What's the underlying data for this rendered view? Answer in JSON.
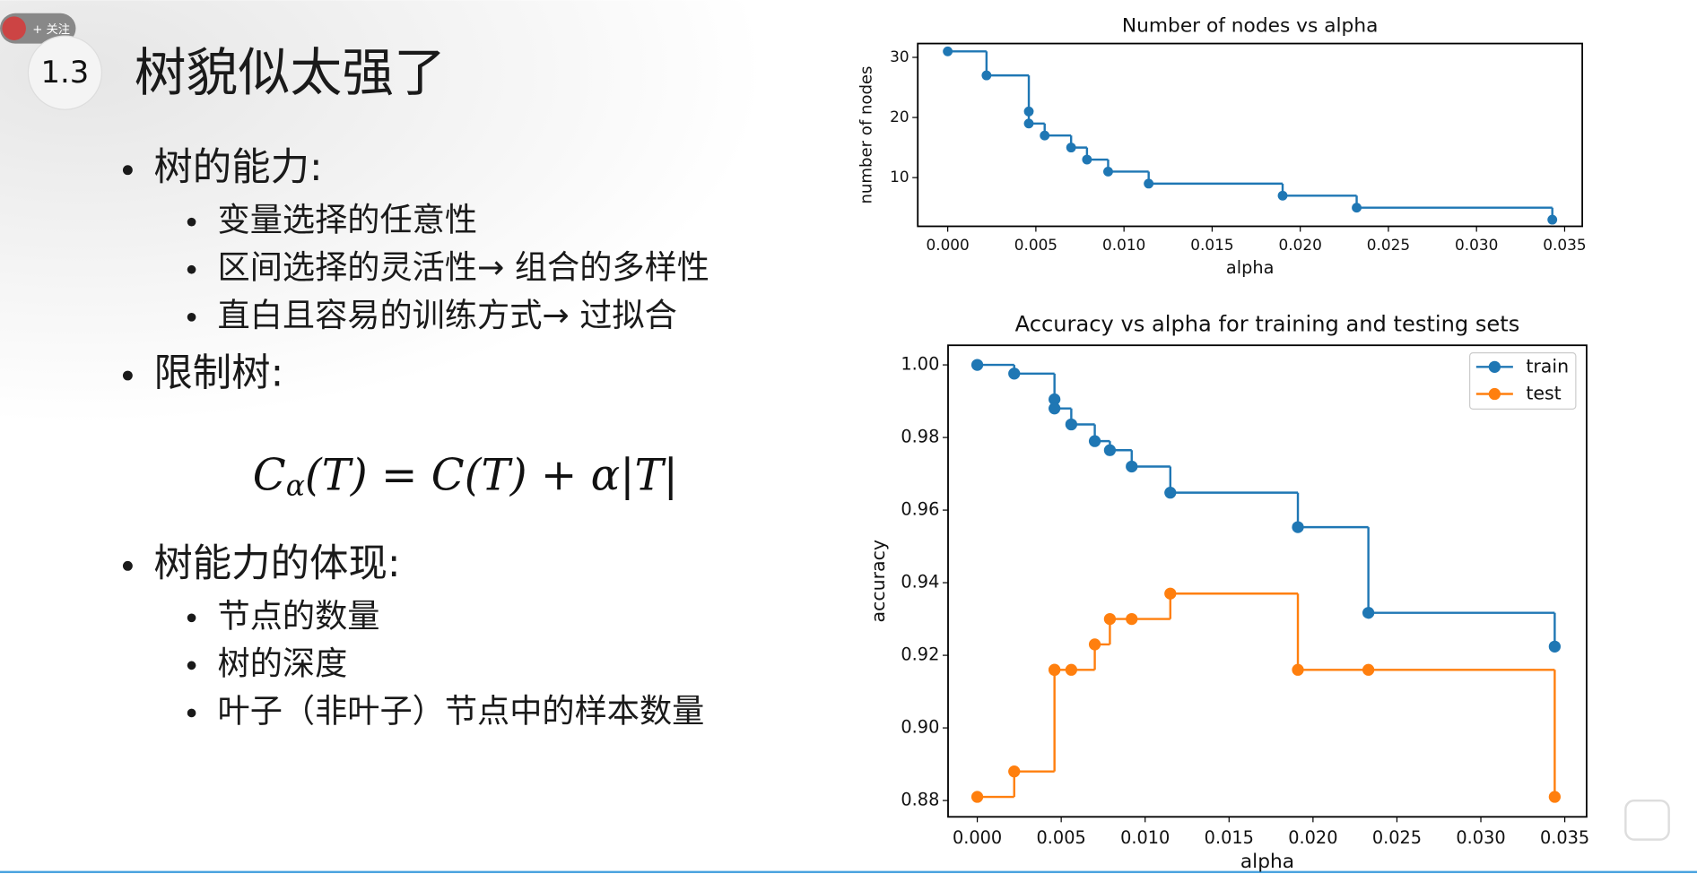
{
  "slide": {
    "badge": "1.3",
    "follow": "+ 关注",
    "title": "树貌似太强了",
    "sections": [
      {
        "heading": "树的能力:",
        "items": [
          "变量选择的任意性",
          "区间选择的灵活性→ 组合的多样性",
          "直白且容易的训练方式→ 过拟合"
        ]
      },
      {
        "heading": "限制树:",
        "items": []
      },
      {
        "heading": "树能力的体现:",
        "items": [
          "节点的数量",
          "树的深度",
          "叶子（非叶子）节点中的样本数量"
        ]
      }
    ],
    "formula": [
      "C",
      "α",
      "(T) = C(T) + α|T|"
    ]
  },
  "chart_data": [
    {
      "type": "step",
      "title": "Number of nodes vs alpha",
      "xlabel": "alpha",
      "ylabel": "number of nodes",
      "x": [
        0.0,
        0.0022,
        0.0046,
        0.0046,
        0.0055,
        0.007,
        0.0079,
        0.0091,
        0.0114,
        0.019,
        0.0232,
        0.0343
      ],
      "values": [
        31,
        27,
        21,
        19,
        17,
        15,
        13,
        11,
        9,
        7,
        5,
        3
      ],
      "color": "#1f77b4",
      "xlim": [
        -0.0017,
        0.036
      ],
      "ylim": [
        1.9,
        32.3
      ],
      "xticks": [
        {
          "value": 0,
          "label": "0.000"
        },
        {
          "value": 0.005,
          "label": "0.005"
        },
        {
          "value": 0.01,
          "label": "0.010"
        },
        {
          "value": 0.015,
          "label": "0.015"
        },
        {
          "value": 0.02,
          "label": "0.020"
        },
        {
          "value": 0.025,
          "label": "0.025"
        },
        {
          "value": 0.03,
          "label": "0.030"
        },
        {
          "value": 0.035,
          "label": "0.035"
        }
      ],
      "yticks": [
        10,
        20,
        30
      ]
    },
    {
      "type": "step",
      "title": "Accuracy vs alpha for training and testing sets",
      "xlabel": "alpha",
      "ylabel": "accuracy",
      "x": [
        0.0,
        0.0022,
        0.0046,
        0.0046,
        0.0056,
        0.007,
        0.0079,
        0.0092,
        0.0115,
        0.0191,
        0.0233,
        0.0344
      ],
      "series": [
        {
          "name": "train",
          "color": "#1f77b4",
          "values": [
            1.0,
            0.9976,
            0.9905,
            0.988,
            0.9836,
            0.979,
            0.9765,
            0.972,
            0.9648,
            0.9553,
            0.9317,
            0.9224
          ]
        },
        {
          "name": "test",
          "color": "#ff7f0e",
          "values": [
            0.881,
            0.888,
            0.916,
            0.916,
            0.916,
            0.923,
            0.93,
            0.93,
            0.937,
            0.916,
            0.916,
            0.881
          ]
        }
      ],
      "legend": "upper right",
      "xlim": [
        -0.00174,
        0.0363
      ],
      "ylim": [
        0.8755,
        1.0054
      ],
      "xticks": [
        {
          "value": 0,
          "label": "0.000"
        },
        {
          "value": 0.005,
          "label": "0.005"
        },
        {
          "value": 0.01,
          "label": "0.010"
        },
        {
          "value": 0.015,
          "label": "0.015"
        },
        {
          "value": 0.02,
          "label": "0.020"
        },
        {
          "value": 0.025,
          "label": "0.025"
        },
        {
          "value": 0.03,
          "label": "0.030"
        },
        {
          "value": 0.035,
          "label": "0.035"
        }
      ],
      "yticks": [
        {
          "value": 0.88,
          "label": "0.88"
        },
        {
          "value": 0.9,
          "label": "0.90"
        },
        {
          "value": 0.92,
          "label": "0.92"
        },
        {
          "value": 0.94,
          "label": "0.94"
        },
        {
          "value": 0.96,
          "label": "0.96"
        },
        {
          "value": 0.98,
          "label": "0.98"
        },
        {
          "value": 1.0,
          "label": "1.00"
        }
      ]
    }
  ]
}
